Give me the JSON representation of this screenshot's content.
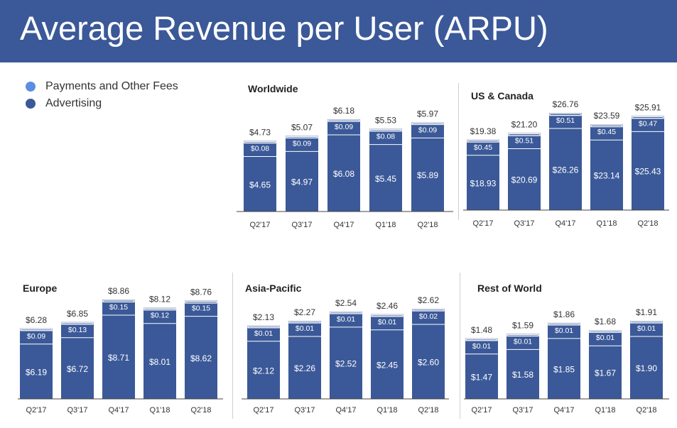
{
  "header": {
    "title": "Average Revenue per User (ARPU)"
  },
  "legend": {
    "items": [
      {
        "label": "Payments and Other Fees",
        "color": "#5b8fe0"
      },
      {
        "label": "Advertising",
        "color": "#3b5998"
      }
    ]
  },
  "colors": {
    "bar": "#3b5998",
    "bar_edge": "#ffffff",
    "axis": "#444444",
    "header": "#3b5998"
  },
  "chart_data": [
    {
      "type": "bar",
      "stacked": true,
      "title": "Worldwide",
      "categories": [
        "Q2'17",
        "Q3'17",
        "Q4'17",
        "Q1'18",
        "Q2'18"
      ],
      "series": [
        {
          "name": "Advertising",
          "values": [
            4.65,
            4.97,
            6.08,
            5.45,
            5.89
          ],
          "labels": [
            "$4.65",
            "$4.97",
            "$6.08",
            "$5.45",
            "$5.89"
          ]
        },
        {
          "name": "Payments and Other Fees",
          "values": [
            0.08,
            0.09,
            0.09,
            0.08,
            0.09
          ],
          "labels": [
            "$0.08",
            "$0.09",
            "$0.09",
            "$0.08",
            "$0.09"
          ]
        }
      ],
      "totals": [
        "$4.73",
        "$5.07",
        "$6.18",
        "$5.53",
        "$5.97"
      ],
      "totals_values": [
        4.73,
        5.07,
        6.18,
        5.53,
        5.97
      ]
    },
    {
      "type": "bar",
      "stacked": true,
      "title": "US & Canada",
      "categories": [
        "Q2'17",
        "Q3'17",
        "Q4'17",
        "Q1'18",
        "Q2'18"
      ],
      "series": [
        {
          "name": "Advertising",
          "values": [
            18.93,
            20.69,
            26.26,
            23.14,
            25.43
          ],
          "labels": [
            "$18.93",
            "$20.69",
            "$26.26",
            "$23.14",
            "$25.43"
          ]
        },
        {
          "name": "Payments and Other Fees",
          "values": [
            0.45,
            0.51,
            0.51,
            0.45,
            0.47
          ],
          "labels": [
            "$0.45",
            "$0.51",
            "$0.51",
            "$0.45",
            "$0.47"
          ]
        }
      ],
      "totals": [
        "$19.38",
        "$21.20",
        "$26.76",
        "$23.59",
        "$25.91"
      ],
      "totals_values": [
        19.38,
        21.2,
        26.76,
        23.59,
        25.91
      ]
    },
    {
      "type": "bar",
      "stacked": true,
      "title": "Europe",
      "categories": [
        "Q2'17",
        "Q3'17",
        "Q4'17",
        "Q1'18",
        "Q2'18"
      ],
      "series": [
        {
          "name": "Advertising",
          "values": [
            6.19,
            6.72,
            8.71,
            8.01,
            8.62
          ],
          "labels": [
            "$6.19",
            "$6.72",
            "$8.71",
            "$8.01",
            "$8.62"
          ]
        },
        {
          "name": "Payments and Other Fees",
          "values": [
            0.09,
            0.13,
            0.15,
            0.12,
            0.15
          ],
          "labels": [
            "$0.09",
            "$0.13",
            "$0.15",
            "$0.12",
            "$0.15"
          ]
        }
      ],
      "totals": [
        "$6.28",
        "$6.85",
        "$8.86",
        "$8.12",
        "$8.76"
      ],
      "totals_values": [
        6.28,
        6.85,
        8.86,
        8.12,
        8.76
      ]
    },
    {
      "type": "bar",
      "stacked": true,
      "title": "Asia-Pacific",
      "categories": [
        "Q2'17",
        "Q3'17",
        "Q4'17",
        "Q1'18",
        "Q2'18"
      ],
      "series": [
        {
          "name": "Advertising",
          "values": [
            2.12,
            2.26,
            2.52,
            2.45,
            2.6
          ],
          "labels": [
            "$2.12",
            "$2.26",
            "$2.52",
            "$2.45",
            "$2.60"
          ]
        },
        {
          "name": "Payments and Other Fees",
          "values": [
            0.01,
            0.01,
            0.01,
            0.01,
            0.02
          ],
          "labels": [
            "$0.01",
            "$0.01",
            "$0.01",
            "$0.01",
            "$0.02"
          ]
        }
      ],
      "totals": [
        "$2.13",
        "$2.27",
        "$2.54",
        "$2.46",
        "$2.62"
      ],
      "totals_values": [
        2.13,
        2.27,
        2.54,
        2.46,
        2.62
      ]
    },
    {
      "type": "bar",
      "stacked": true,
      "title": "Rest of World",
      "categories": [
        "Q2'17",
        "Q3'17",
        "Q4'17",
        "Q1'18",
        "Q2'18"
      ],
      "series": [
        {
          "name": "Advertising",
          "values": [
            1.47,
            1.58,
            1.85,
            1.67,
            1.9
          ],
          "labels": [
            "$1.47",
            "$1.58",
            "$1.85",
            "$1.67",
            "$1.90"
          ]
        },
        {
          "name": "Payments and Other Fees",
          "values": [
            0.01,
            0.01,
            0.01,
            0.01,
            0.01
          ],
          "labels": [
            "$0.01",
            "$0.01",
            "$0.01",
            "$0.01",
            "$0.01"
          ]
        }
      ],
      "totals": [
        "$1.48",
        "$1.59",
        "$1.86",
        "$1.68",
        "$1.91"
      ],
      "totals_values": [
        1.48,
        1.59,
        1.86,
        1.68,
        1.91
      ]
    }
  ]
}
